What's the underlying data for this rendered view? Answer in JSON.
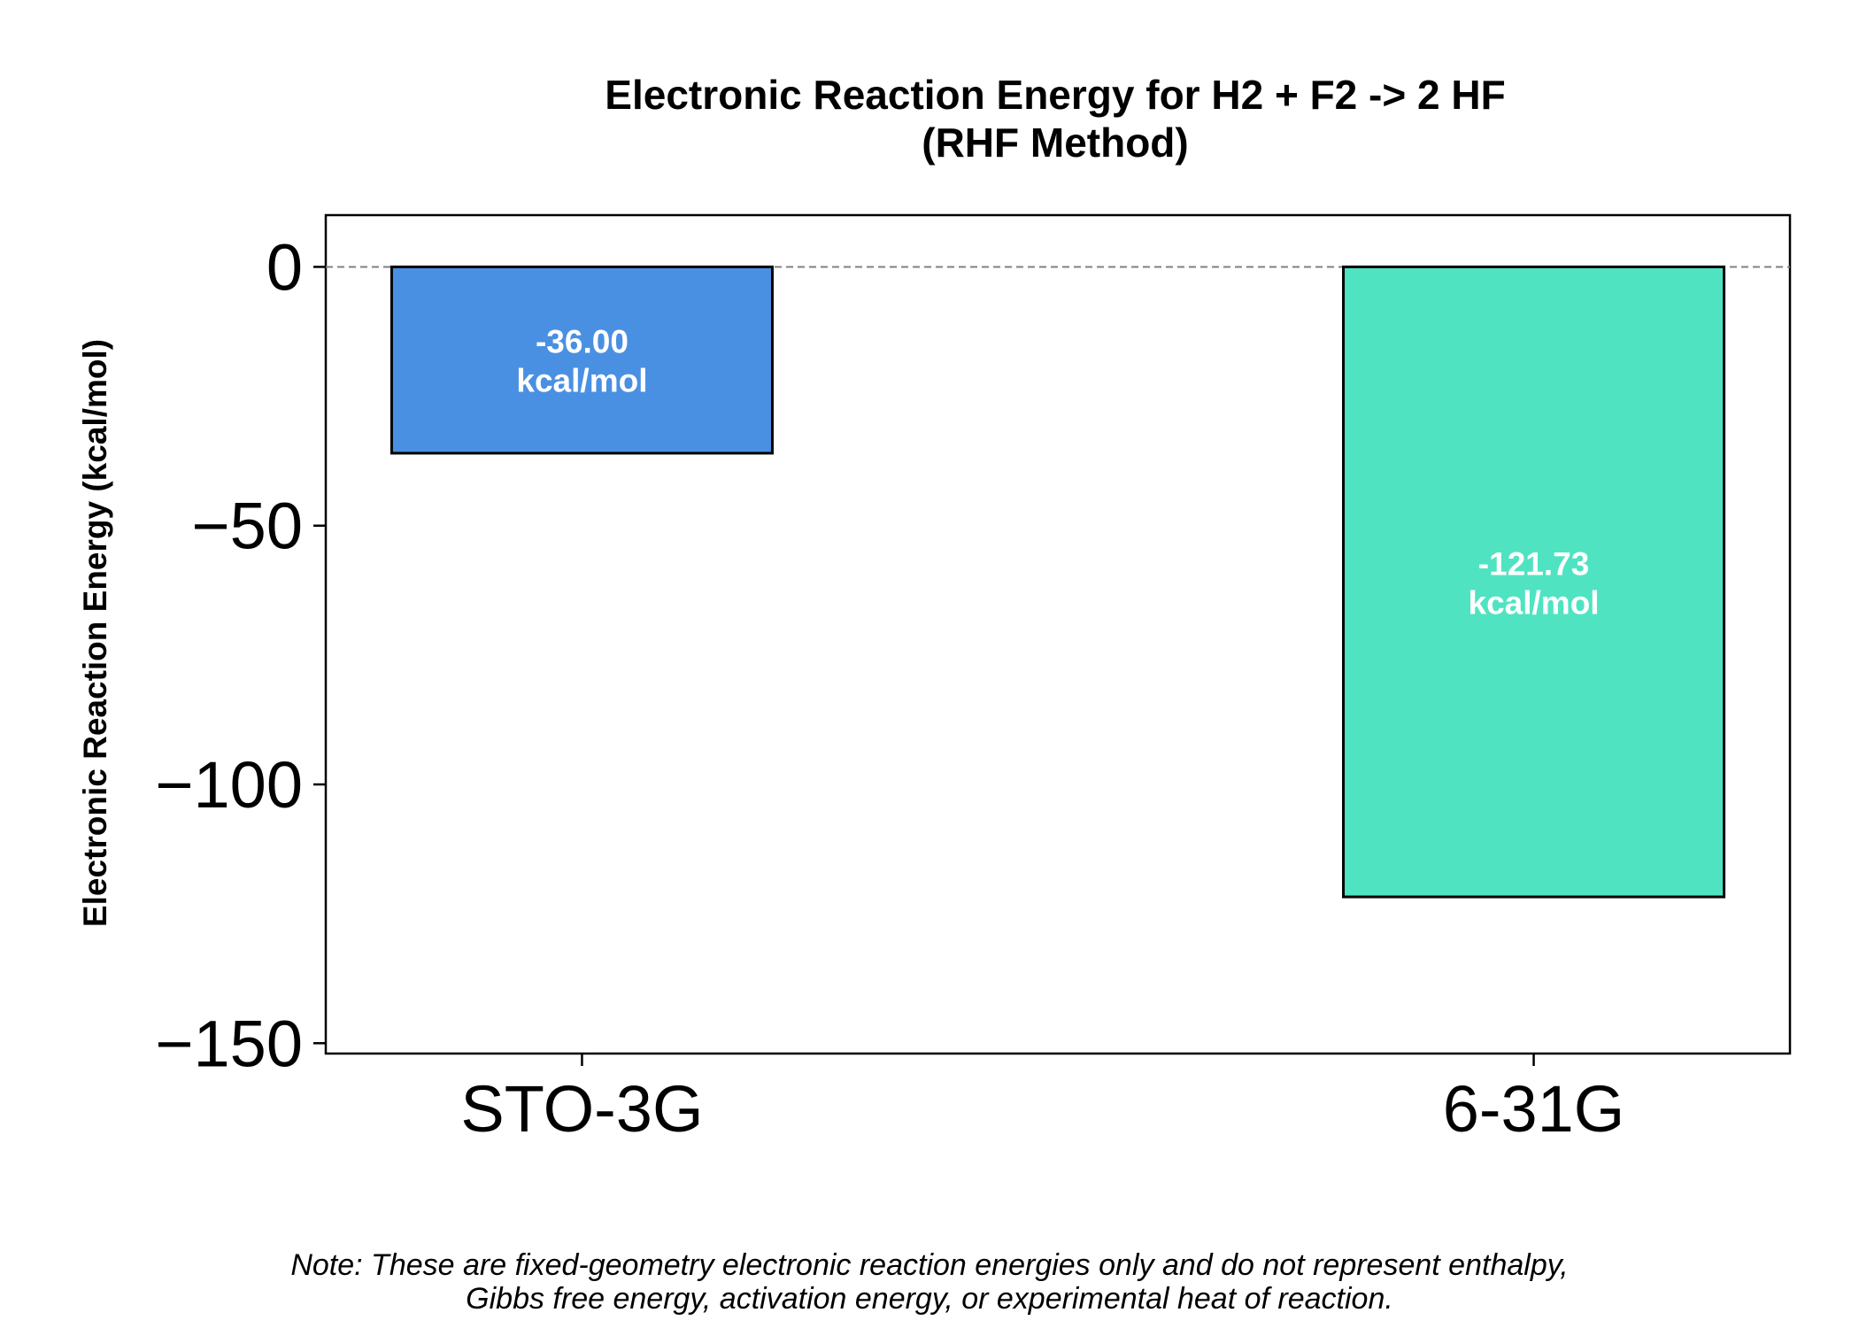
{
  "chart_data": {
    "type": "bar",
    "title": [
      "Electronic Reaction Energy for H2 + F2 -> 2 HF",
      "(RHF Method)"
    ],
    "ylabel": "Electronic Reaction Energy (kcal/mol)",
    "xlabel": "",
    "categories": [
      "STO-3G",
      "6-31G"
    ],
    "values": [
      -36.0,
      -121.73
    ],
    "data_labels": [
      [
        "-36.00",
        "kcal/mol"
      ],
      [
        "-121.73",
        "kcal/mol"
      ]
    ],
    "colors": [
      "#4a90e2",
      "#50e3c2"
    ],
    "ylim": [
      -152,
      10
    ],
    "yticks": [
      0,
      -50,
      -100,
      -150
    ],
    "ytick_labels": [
      "0",
      "−50",
      "−100",
      "−150"
    ],
    "reference_line": {
      "y": 0,
      "style": "dashed",
      "color": "#808080"
    },
    "grid": false,
    "legend": "none"
  },
  "note": {
    "line1": "Note: These are fixed-geometry electronic reaction energies only and do not represent enthalpy,",
    "line2": "Gibbs free energy, activation energy, or experimental heat of reaction."
  }
}
